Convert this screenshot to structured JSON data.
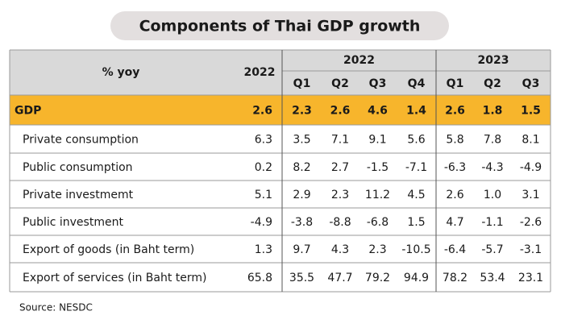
{
  "title": "Components of Thai GDP growth",
  "table": {
    "header": {
      "label": "% yoy",
      "annual": "2022",
      "groups": [
        {
          "label": "2022",
          "quarters": [
            "Q1",
            "Q2",
            "Q3",
            "Q4"
          ]
        },
        {
          "label": "2023",
          "quarters": [
            "Q1",
            "Q2",
            "Q3"
          ]
        }
      ]
    },
    "rows": [
      {
        "label": "GDP",
        "cells": [
          "2.6",
          "2.3",
          "2.6",
          "4.6",
          "1.4",
          "2.6",
          "1.8",
          "1.5"
        ]
      },
      {
        "label": "Private consumption",
        "cells": [
          "6.3",
          "3.5",
          "7.1",
          "9.1",
          "5.6",
          "5.8",
          "7.8",
          "8.1"
        ]
      },
      {
        "label": "Public consumption",
        "cells": [
          "0.2",
          "8.2",
          "2.7",
          "-1.5",
          "-7.1",
          "-6.3",
          "-4.3",
          "-4.9"
        ]
      },
      {
        "label": "Private investmemt",
        "cells": [
          "5.1",
          "2.9",
          "2.3",
          "11.2",
          "4.5",
          "2.6",
          "1.0",
          "3.1"
        ]
      },
      {
        "label": "Public investment",
        "cells": [
          "-4.9",
          "-3.8",
          "-8.8",
          "-6.8",
          "1.5",
          "4.7",
          "-1.1",
          "-2.6"
        ]
      },
      {
        "label": "Export of goods (in Baht term)",
        "cells": [
          "1.3",
          "9.7",
          "4.3",
          "2.3",
          "-10.5",
          "-6.4",
          "-5.7",
          "-3.1"
        ]
      },
      {
        "label": "Export of services (in Baht term)",
        "cells": [
          "65.8",
          "35.5",
          "47.7",
          "79.2",
          "94.9",
          "78.2",
          "53.4",
          "23.1"
        ]
      }
    ]
  },
  "source": "Source: NESDC"
}
